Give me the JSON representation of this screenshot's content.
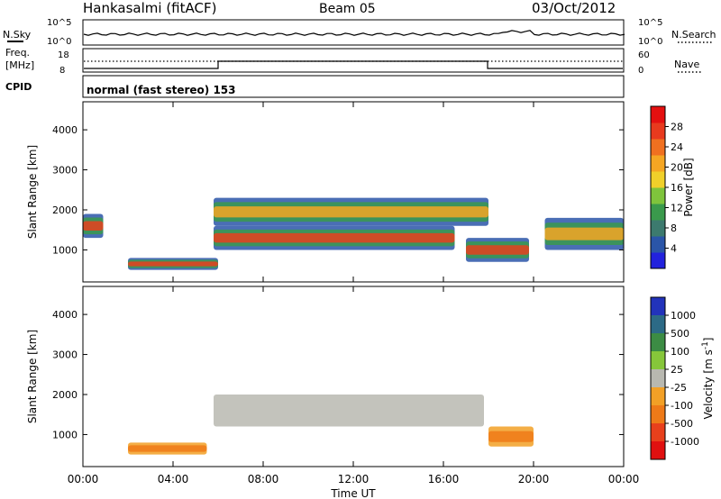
{
  "header": {
    "title": "Hankasalmi (fitACF)",
    "beam": "Beam 05",
    "date": "03/Oct/2012"
  },
  "noise_panel": {
    "left_label": "N.Sky",
    "right_label": "N.Search",
    "left_top_tick": "10^5",
    "left_bottom_tick": "10^0",
    "right_top_tick": "10^5",
    "right_bottom_tick": "10^0"
  },
  "freq_panel": {
    "left_label_1": "Freq.",
    "left_label_2": "[MHz]",
    "left_top_tick": "18",
    "left_bottom_tick": "8",
    "right_label": "Nave",
    "right_top_tick": "60",
    "right_bottom_tick": "0"
  },
  "cpid_panel": {
    "label": "CPID",
    "program": "normal (fast stereo) 153"
  },
  "chart_data": [
    {
      "type": "heatmap",
      "panel": "power",
      "ylabel": "Slant Range [km]",
      "xlabel": "Time UT",
      "yticks": [
        "1000",
        "2000",
        "3000",
        "4000"
      ],
      "ylim": [
        200,
        4700
      ],
      "xlim": [
        0,
        24
      ],
      "colorbar": {
        "label": "Power [dB]",
        "ticks": [
          "4",
          "8",
          "12",
          "16",
          "20",
          "24",
          "28"
        ],
        "colors": [
          "#2222dd",
          "#2a55a8",
          "#3c7a6e",
          "#3a9a4c",
          "#7fc43c",
          "#f0d02a",
          "#f5a623",
          "#f07020",
          "#e83a1e",
          "#e41010"
        ]
      },
      "features": [
        {
          "description_time_start": 0.0,
          "time_end": 0.9,
          "range_low": 1300,
          "range_high": 1900,
          "level": "high"
        },
        {
          "description_time_start": 2.0,
          "time_end": 6.0,
          "range_low": 500,
          "range_high": 800,
          "level": "high"
        },
        {
          "description_time_start": 5.8,
          "time_end": 16.5,
          "range_low": 1000,
          "range_high": 1600,
          "level": "high"
        },
        {
          "description_time_start": 5.8,
          "time_end": 18.0,
          "range_low": 1600,
          "range_high": 2300,
          "level": "medium"
        },
        {
          "description_time_start": 17.0,
          "time_end": 19.8,
          "range_low": 700,
          "range_high": 1300,
          "level": "high"
        },
        {
          "description_time_start": 20.5,
          "time_end": 24.0,
          "range_low": 1000,
          "range_high": 1800,
          "level": "medium"
        }
      ]
    },
    {
      "type": "heatmap",
      "panel": "velocity",
      "ylabel": "Slant Range [km]",
      "xlabel": "Time UT",
      "yticks": [
        "1000",
        "2000",
        "3000",
        "4000"
      ],
      "ylim": [
        200,
        4700
      ],
      "xlim": [
        0,
        24
      ],
      "xticks": [
        "00:00",
        "04:00",
        "08:00",
        "12:00",
        "16:00",
        "20:00",
        "00:00"
      ],
      "colorbar": {
        "label": "Velocity [m s^-1]",
        "ticks": [
          "1000",
          "500",
          "100",
          "25",
          "-25",
          "-100",
          "-500",
          "-1000"
        ],
        "colors": [
          "#2233bb",
          "#2c6a86",
          "#3c8c44",
          "#86c63a",
          "#b8b8b0",
          "#f2a026",
          "#ee7a18",
          "#e8401c",
          "#e01010"
        ]
      },
      "features": [
        {
          "description_time_start": 5.8,
          "time_end": 17.8,
          "range_low": 1200,
          "range_high": 2000,
          "level": "ground scatter"
        },
        {
          "description_time_start": 2.0,
          "time_end": 5.5,
          "range_low": 500,
          "range_high": 800,
          "level": "negative"
        },
        {
          "description_time_start": 18.0,
          "time_end": 20.0,
          "range_low": 700,
          "range_high": 1200,
          "level": "negative"
        }
      ]
    }
  ],
  "colors": {
    "axis": "#000000",
    "background": "#ffffff",
    "ground_scatter": "#b8b8b0"
  }
}
